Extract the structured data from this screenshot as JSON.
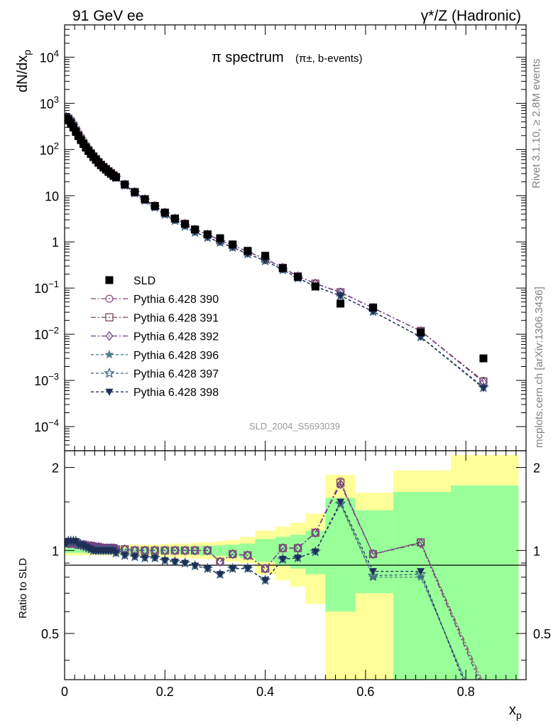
{
  "header": {
    "left": "91 GeV ee",
    "right": "γ*/Z (Hadronic)"
  },
  "side_labels": {
    "rivet": "Rivet 3.1.10, ≥ 2.8M events",
    "mcplots": "mcplots.cern.ch [arXiv:1306.3436]"
  },
  "analysis_id": "SLD_2004_S5693039",
  "colors": {
    "sld": "#000000",
    "p390": "#8e5a86",
    "p391": "#7d4a5e",
    "p392": "#6a3f8e",
    "p396": "#4f7f86",
    "p397": "#3a5f80",
    "p398": "#1f2f56",
    "band_outer": "#ffff99",
    "band_inner": "#99ff99"
  },
  "chart_data": [
    {
      "type": "scatter",
      "panel": "main",
      "title": "π spectrum",
      "title_sub": "(π±, b-events)",
      "xlabel": "xp",
      "ylabel": "dN/dxp",
      "yscale": "log",
      "xlim": [
        0,
        0.92
      ],
      "ylim": [
        3e-05,
        50000
      ],
      "x_ticks": [
        "0",
        "0.2",
        "0.4",
        "0.6",
        "0.8"
      ],
      "y_ticks": [
        "10^-4",
        "10^-3",
        "10^-2",
        "10^-1",
        "1",
        "10",
        "10^2",
        "10^3",
        "10^4"
      ],
      "legend_position": "bottom-left",
      "x": [
        0.0035,
        0.0075,
        0.0125,
        0.0175,
        0.0225,
        0.0275,
        0.0325,
        0.0375,
        0.0425,
        0.0475,
        0.0525,
        0.0575,
        0.0625,
        0.0675,
        0.0725,
        0.0775,
        0.0825,
        0.0875,
        0.0925,
        0.0975,
        0.1025,
        0.12,
        0.14,
        0.16,
        0.18,
        0.2,
        0.22,
        0.24,
        0.26,
        0.285,
        0.31,
        0.335,
        0.365,
        0.4,
        0.435,
        0.465,
        0.5,
        0.55,
        0.615,
        0.71,
        0.835
      ],
      "series": [
        {
          "name": "SLD",
          "marker": "filled-square",
          "color": "#000000",
          "values": [
            470,
            430,
            370,
            300,
            240,
            195,
            160,
            132,
            110,
            93,
            80,
            69,
            60,
            52,
            46,
            41,
            37,
            33,
            30,
            27,
            25,
            17.5,
            12.0,
            8.4,
            6.0,
            4.3,
            3.2,
            2.45,
            1.85,
            1.45,
            1.2,
            0.88,
            0.64,
            0.5,
            0.27,
            0.175,
            0.108,
            0.046,
            0.038,
            0.011,
            0.003
          ]
        },
        {
          "name": "Pythia 6.428 390",
          "marker": "open-circle",
          "color": "#8e5a86",
          "values": [
            505,
            470,
            405,
            330,
            262,
            210,
            172,
            140,
            116,
            97,
            83,
            71,
            62,
            54,
            47,
            42,
            38,
            34,
            31,
            28,
            25.5,
            17.5,
            12.0,
            8.4,
            6.0,
            4.3,
            3.2,
            2.45,
            1.85,
            1.45,
            1.08,
            0.85,
            0.61,
            0.43,
            0.275,
            0.18,
            0.125,
            0.082,
            0.037,
            0.0118,
            0.00098
          ]
        },
        {
          "name": "Pythia 6.428 391",
          "marker": "open-square",
          "color": "#7d4a5e",
          "values": [
            505,
            470,
            405,
            330,
            262,
            210,
            172,
            140,
            116,
            97,
            83,
            71,
            62,
            54,
            47,
            42,
            38,
            34,
            31,
            28,
            25.5,
            17.5,
            12.0,
            8.4,
            6.0,
            4.3,
            3.2,
            2.45,
            1.85,
            1.45,
            1.08,
            0.85,
            0.61,
            0.43,
            0.275,
            0.18,
            0.125,
            0.081,
            0.037,
            0.0118,
            0.00095
          ]
        },
        {
          "name": "Pythia 6.428 392",
          "marker": "open-diamond",
          "color": "#6a3f8e",
          "values": [
            505,
            470,
            405,
            330,
            262,
            210,
            172,
            140,
            116,
            97,
            83,
            71,
            62,
            54,
            47,
            42,
            38,
            34,
            31,
            28,
            25.5,
            17.5,
            12.0,
            8.4,
            6.0,
            4.3,
            3.2,
            2.45,
            1.85,
            1.45,
            1.08,
            0.85,
            0.61,
            0.43,
            0.275,
            0.18,
            0.125,
            0.08,
            0.037,
            0.0117,
            0.00092
          ]
        },
        {
          "name": "Pythia 6.428 396",
          "marker": "star",
          "color": "#4f7f86",
          "values": [
            500,
            465,
            400,
            325,
            258,
            205,
            168,
            137,
            113,
            95,
            81,
            69,
            60,
            52,
            46,
            41,
            37,
            33,
            30,
            27,
            24.5,
            16.8,
            11.4,
            7.9,
            5.6,
            3.95,
            2.9,
            2.2,
            1.62,
            1.25,
            0.98,
            0.76,
            0.55,
            0.39,
            0.25,
            0.165,
            0.108,
            0.068,
            0.031,
            0.0088,
            0.00072
          ]
        },
        {
          "name": "Pythia 6.428 397",
          "marker": "open-star",
          "color": "#3a5f80",
          "values": [
            500,
            465,
            400,
            325,
            258,
            205,
            168,
            137,
            113,
            95,
            81,
            69,
            60,
            52,
            46,
            41,
            37,
            33,
            30,
            27,
            24.5,
            16.8,
            11.4,
            7.9,
            5.6,
            3.95,
            2.9,
            2.2,
            1.62,
            1.25,
            0.98,
            0.76,
            0.55,
            0.39,
            0.25,
            0.165,
            0.108,
            0.068,
            0.031,
            0.0088,
            0.0007
          ]
        },
        {
          "name": "Pythia 6.428 398",
          "marker": "filled-triangle-down",
          "color": "#1f2f56",
          "values": [
            500,
            465,
            400,
            325,
            258,
            205,
            168,
            137,
            113,
            95,
            81,
            69,
            60,
            52,
            46,
            41,
            37,
            33,
            30,
            27,
            24.5,
            16.8,
            11.4,
            7.9,
            5.6,
            3.95,
            2.9,
            2.2,
            1.62,
            1.25,
            0.98,
            0.76,
            0.55,
            0.39,
            0.25,
            0.165,
            0.108,
            0.068,
            0.031,
            0.0087,
            0.00068
          ]
        }
      ]
    },
    {
      "type": "line",
      "panel": "ratio",
      "ylabel": "Ratio to SLD",
      "xlabel": "xp",
      "xlim": [
        0,
        0.92
      ],
      "ylim": [
        0.34,
        2.3
      ],
      "y_ticks": [
        "0.5",
        "1",
        "2"
      ],
      "x_ticks": [
        "0",
        "0.2",
        "0.4",
        "0.6",
        "0.8"
      ],
      "x": [
        0.0035,
        0.0075,
        0.0125,
        0.0175,
        0.0225,
        0.0275,
        0.0325,
        0.0375,
        0.0425,
        0.0475,
        0.0525,
        0.0575,
        0.0625,
        0.0675,
        0.0725,
        0.0775,
        0.0825,
        0.0875,
        0.0925,
        0.0975,
        0.1025,
        0.12,
        0.14,
        0.16,
        0.18,
        0.2,
        0.22,
        0.24,
        0.26,
        0.285,
        0.31,
        0.335,
        0.365,
        0.4,
        0.435,
        0.465,
        0.5,
        0.55,
        0.615,
        0.71,
        0.835
      ],
      "bands": [
        {
          "x0": 0.0,
          "x1": 0.1,
          "outer": [
            0.96,
            1.04
          ],
          "inner": [
            0.98,
            1.02
          ]
        },
        {
          "x0": 0.1,
          "x1": 0.13,
          "outer": [
            0.96,
            1.04
          ],
          "inner": [
            0.98,
            1.02
          ]
        },
        {
          "x0": 0.13,
          "x1": 0.15,
          "outer": [
            0.95,
            1.05
          ],
          "inner": [
            0.975,
            1.025
          ]
        },
        {
          "x0": 0.15,
          "x1": 0.17,
          "outer": [
            0.95,
            1.05
          ],
          "inner": [
            0.975,
            1.025
          ]
        },
        {
          "x0": 0.17,
          "x1": 0.19,
          "outer": [
            0.95,
            1.05
          ],
          "inner": [
            0.975,
            1.025
          ]
        },
        {
          "x0": 0.19,
          "x1": 0.21,
          "outer": [
            0.945,
            1.055
          ],
          "inner": [
            0.97,
            1.03
          ]
        },
        {
          "x0": 0.21,
          "x1": 0.23,
          "outer": [
            0.94,
            1.06
          ],
          "inner": [
            0.97,
            1.03
          ]
        },
        {
          "x0": 0.23,
          "x1": 0.25,
          "outer": [
            0.94,
            1.06
          ],
          "inner": [
            0.97,
            1.03
          ]
        },
        {
          "x0": 0.25,
          "x1": 0.27,
          "outer": [
            0.935,
            1.065
          ],
          "inner": [
            0.965,
            1.035
          ]
        },
        {
          "x0": 0.27,
          "x1": 0.3,
          "outer": [
            0.93,
            1.07
          ],
          "inner": [
            0.96,
            1.04
          ]
        },
        {
          "x0": 0.3,
          "x1": 0.32,
          "outer": [
            0.92,
            1.08
          ],
          "inner": [
            0.955,
            1.045
          ]
        },
        {
          "x0": 0.32,
          "x1": 0.35,
          "outer": [
            0.91,
            1.09
          ],
          "inner": [
            0.95,
            1.05
          ]
        },
        {
          "x0": 0.35,
          "x1": 0.38,
          "outer": [
            0.9,
            1.12
          ],
          "inner": [
            0.94,
            1.06
          ]
        },
        {
          "x0": 0.38,
          "x1": 0.42,
          "outer": [
            0.82,
            1.18
          ],
          "inner": [
            0.91,
            1.1
          ]
        },
        {
          "x0": 0.42,
          "x1": 0.45,
          "outer": [
            0.78,
            1.22
          ],
          "inner": [
            0.88,
            1.12
          ]
        },
        {
          "x0": 0.45,
          "x1": 0.48,
          "outer": [
            0.74,
            1.26
          ],
          "inner": [
            0.86,
            1.14
          ]
        },
        {
          "x0": 0.48,
          "x1": 0.52,
          "outer": [
            0.64,
            1.36
          ],
          "inner": [
            0.82,
            1.18
          ]
        },
        {
          "x0": 0.52,
          "x1": 0.58,
          "outer": [
            0.3,
            1.88
          ],
          "inner": [
            0.6,
            1.55
          ]
        },
        {
          "x0": 0.58,
          "x1": 0.655,
          "outer": [
            0.34,
            1.62
          ],
          "inner": [
            0.7,
            1.4
          ]
        },
        {
          "x0": 0.655,
          "x1": 0.77,
          "outer": [
            0.3,
            1.95
          ],
          "inner": [
            0.3,
            1.63
          ]
        },
        {
          "x0": 0.77,
          "x1": 0.905,
          "outer": [
            0.3,
            2.22
          ],
          "inner": [
            0.3,
            1.72
          ]
        }
      ],
      "series": [
        {
          "name": "Pythia 6.428 390",
          "color": "#8e5a86",
          "values": [
            1.07,
            1.06,
            1.06,
            1.06,
            1.06,
            1.05,
            1.05,
            1.05,
            1.04,
            1.04,
            1.04,
            1.03,
            1.03,
            1.03,
            1.02,
            1.02,
            1.02,
            1.02,
            1.02,
            1.02,
            1.01,
            1.01,
            1.0,
            1.0,
            1.0,
            1.0,
            1.0,
            1.0,
            1.0,
            1.0,
            0.91,
            0.97,
            0.96,
            0.86,
            1.02,
            1.02,
            1.16,
            1.78,
            0.97,
            1.07,
            0.33
          ]
        },
        {
          "name": "Pythia 6.428 391",
          "color": "#7d4a5e",
          "values": [
            1.07,
            1.06,
            1.06,
            1.06,
            1.06,
            1.05,
            1.05,
            1.05,
            1.04,
            1.04,
            1.04,
            1.03,
            1.03,
            1.03,
            1.02,
            1.02,
            1.02,
            1.02,
            1.02,
            1.02,
            1.01,
            1.01,
            1.0,
            1.0,
            1.0,
            1.0,
            1.0,
            1.0,
            1.0,
            1.0,
            0.91,
            0.97,
            0.96,
            0.86,
            1.02,
            1.02,
            1.16,
            1.76,
            0.97,
            1.07,
            0.32
          ]
        },
        {
          "name": "Pythia 6.428 392",
          "color": "#6a3f8e",
          "values": [
            1.07,
            1.06,
            1.06,
            1.06,
            1.06,
            1.05,
            1.05,
            1.05,
            1.04,
            1.04,
            1.04,
            1.03,
            1.03,
            1.03,
            1.02,
            1.02,
            1.02,
            1.02,
            1.02,
            1.02,
            1.01,
            1.01,
            1.0,
            1.0,
            1.0,
            1.0,
            1.0,
            1.0,
            1.0,
            1.0,
            0.91,
            0.97,
            0.96,
            0.86,
            1.02,
            1.02,
            1.16,
            1.74,
            0.97,
            1.06,
            0.31
          ]
        },
        {
          "name": "Pythia 6.428 396",
          "color": "#4f7f86",
          "values": [
            1.06,
            1.08,
            1.08,
            1.08,
            1.08,
            1.05,
            1.05,
            1.04,
            1.03,
            1.02,
            1.01,
            1.0,
            1.0,
            1.0,
            1.0,
            1.0,
            1.0,
            1.0,
            1.0,
            1.0,
            0.98,
            0.96,
            0.95,
            0.94,
            0.94,
            0.92,
            0.91,
            0.9,
            0.88,
            0.86,
            0.82,
            0.86,
            0.86,
            0.78,
            0.93,
            0.94,
            0.99,
            1.47,
            0.8,
            0.8,
            0.24
          ]
        },
        {
          "name": "Pythia 6.428 397",
          "color": "#3a5f80",
          "values": [
            1.06,
            1.08,
            1.08,
            1.08,
            1.08,
            1.05,
            1.05,
            1.04,
            1.03,
            1.02,
            1.01,
            1.0,
            1.0,
            1.0,
            1.0,
            1.0,
            1.0,
            1.0,
            1.0,
            1.0,
            0.98,
            0.96,
            0.95,
            0.94,
            0.94,
            0.92,
            0.91,
            0.9,
            0.88,
            0.86,
            0.82,
            0.86,
            0.86,
            0.78,
            0.93,
            0.94,
            0.99,
            1.48,
            0.81,
            0.82,
            0.23
          ]
        },
        {
          "name": "Pythia 6.428 398",
          "color": "#1f2f56",
          "values": [
            1.06,
            1.08,
            1.08,
            1.08,
            1.08,
            1.05,
            1.05,
            1.04,
            1.03,
            1.02,
            1.01,
            1.0,
            1.0,
            1.0,
            1.0,
            1.0,
            1.0,
            1.0,
            1.0,
            1.0,
            0.98,
            0.96,
            0.95,
            0.94,
            0.94,
            0.92,
            0.91,
            0.9,
            0.88,
            0.86,
            0.82,
            0.86,
            0.86,
            0.78,
            0.93,
            0.94,
            0.99,
            1.5,
            0.84,
            0.84,
            0.22
          ]
        }
      ]
    }
  ]
}
